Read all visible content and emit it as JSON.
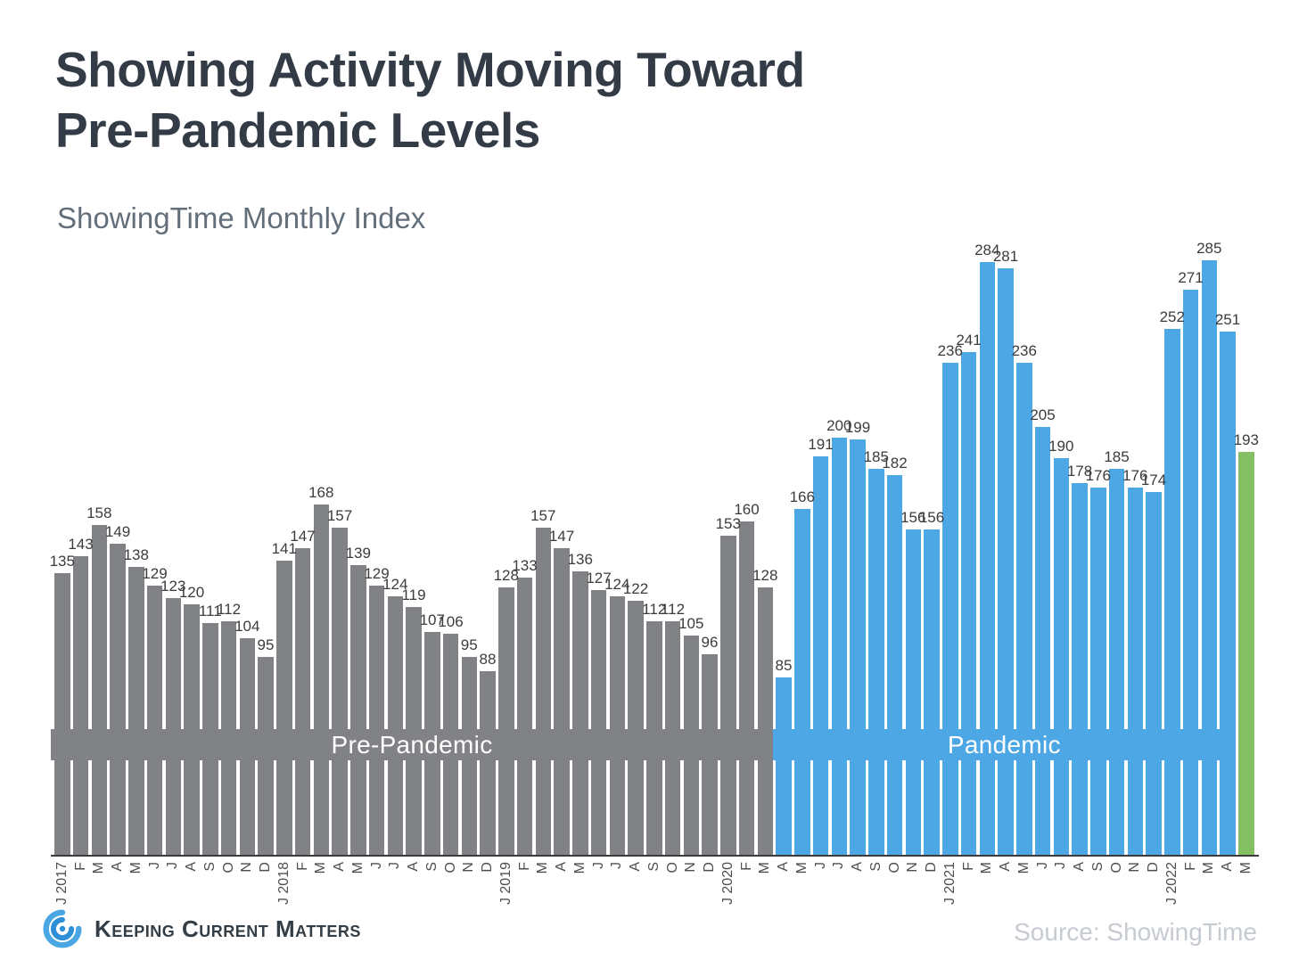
{
  "title": {
    "line1": "Showing Activity Moving Toward",
    "line2": "Pre-Pandemic Levels"
  },
  "subtitle": "ShowingTime Monthly Index",
  "chart_data": {
    "type": "bar",
    "title": "Showing Activity Moving Toward Pre-Pandemic Levels",
    "subtitle": "ShowingTime Monthly Index",
    "ylim": [
      0,
      300
    ],
    "grid": false,
    "value_labels": "above each bar",
    "x_tick_rotation": -90,
    "categories": [
      "J 2017",
      "F",
      "M",
      "A",
      "M",
      "J",
      "J",
      "A",
      "S",
      "O",
      "N",
      "D",
      "J 2018",
      "F",
      "M",
      "A",
      "M",
      "J",
      "J",
      "A",
      "S",
      "O",
      "N",
      "D",
      "J 2019",
      "F",
      "M",
      "A",
      "M",
      "J",
      "J",
      "A",
      "S",
      "O",
      "N",
      "D",
      "J 2020",
      "F",
      "M",
      "A",
      "M",
      "J",
      "J",
      "A",
      "S",
      "O",
      "N",
      "D",
      "J 2021",
      "F",
      "M",
      "A",
      "M",
      "J",
      "J",
      "A",
      "S",
      "O",
      "N",
      "D",
      "J 2022",
      "F",
      "M",
      "A",
      "M"
    ],
    "values": [
      135,
      143,
      158,
      149,
      138,
      129,
      123,
      120,
      111,
      112,
      104,
      95,
      141,
      147,
      168,
      157,
      139,
      129,
      124,
      119,
      107,
      106,
      95,
      88,
      128,
      133,
      157,
      147,
      136,
      127,
      124,
      122,
      112,
      112,
      105,
      96,
      153,
      160,
      128,
      85,
      166,
      191,
      200,
      199,
      185,
      182,
      156,
      156,
      236,
      241,
      284,
      281,
      236,
      205,
      190,
      178,
      176,
      185,
      176,
      174,
      252,
      271,
      285,
      251,
      193
    ],
    "phases": [
      "pre",
      "pre",
      "pre",
      "pre",
      "pre",
      "pre",
      "pre",
      "pre",
      "pre",
      "pre",
      "pre",
      "pre",
      "pre",
      "pre",
      "pre",
      "pre",
      "pre",
      "pre",
      "pre",
      "pre",
      "pre",
      "pre",
      "pre",
      "pre",
      "pre",
      "pre",
      "pre",
      "pre",
      "pre",
      "pre",
      "pre",
      "pre",
      "pre",
      "pre",
      "pre",
      "pre",
      "pre",
      "pre",
      "pre",
      "pandemic",
      "pandemic",
      "pandemic",
      "pandemic",
      "pandemic",
      "pandemic",
      "pandemic",
      "pandemic",
      "pandemic",
      "pandemic",
      "pandemic",
      "pandemic",
      "pandemic",
      "pandemic",
      "pandemic",
      "pandemic",
      "pandemic",
      "pandemic",
      "pandemic",
      "pandemic",
      "pandemic",
      "pandemic",
      "pandemic",
      "pandemic",
      "pandemic",
      "latest"
    ],
    "colors": {
      "pre": "#808285",
      "pandemic": "#4DA7E4",
      "latest": "#84C063"
    },
    "segments": [
      {
        "label": "Pre-Pandemic",
        "phase": "pre"
      },
      {
        "label": "Pandemic",
        "phase": "pandemic"
      }
    ]
  },
  "footer": {
    "brand": "Keeping Current Matters",
    "logo": "kcm-swirl-logo",
    "source": "Source: ShowingTime"
  }
}
